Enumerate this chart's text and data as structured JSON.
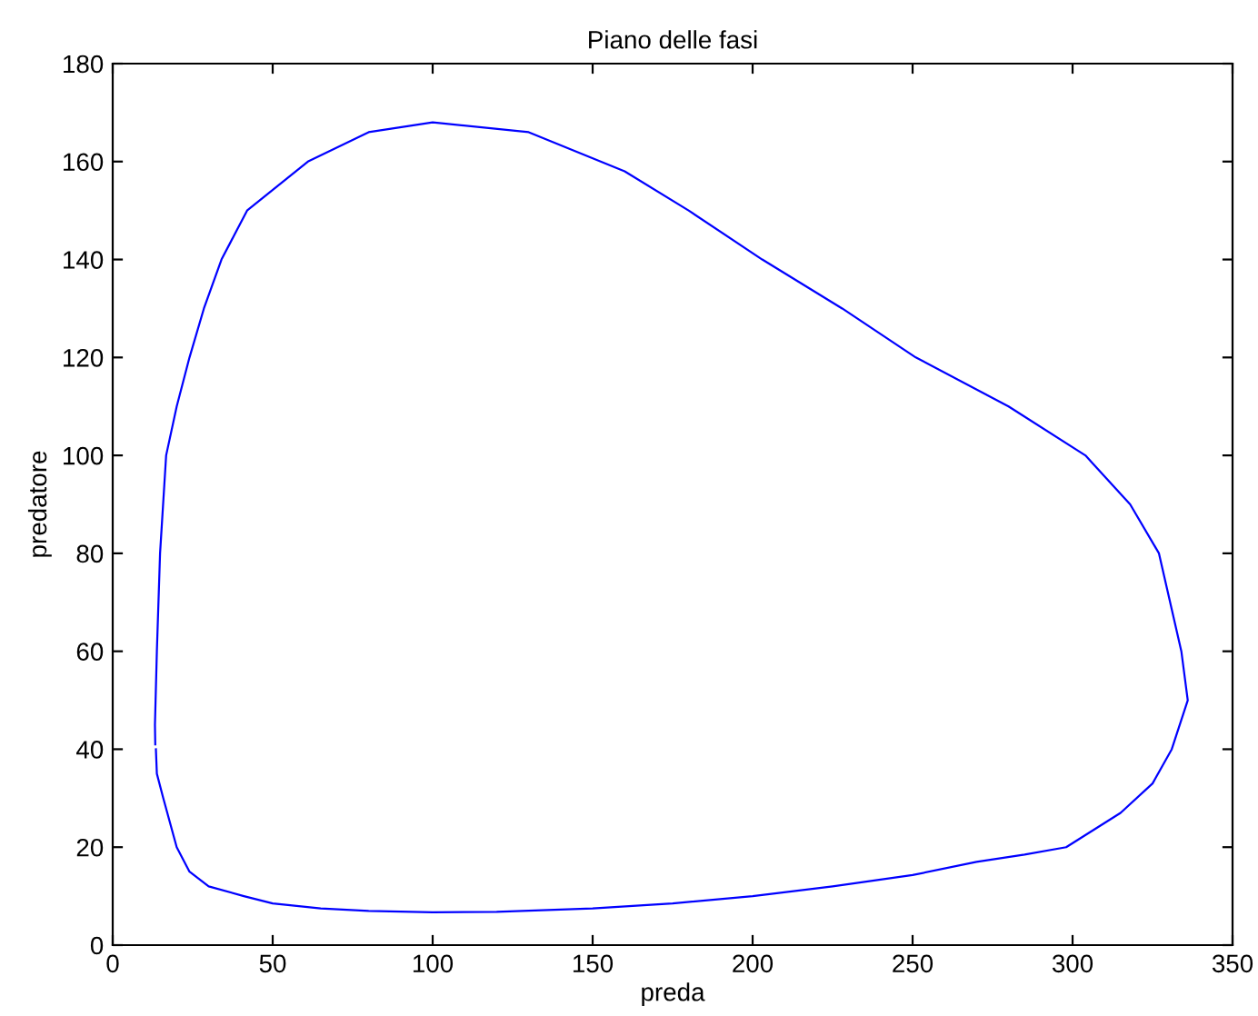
{
  "chart_data": {
    "type": "line",
    "title": "Piano delle fasi",
    "xlabel": "preda",
    "ylabel": "predatore",
    "x": [
      13.5,
      13.8,
      15.8,
      20,
      24,
      30,
      41,
      50,
      65,
      80,
      100,
      120,
      150,
      175,
      200,
      225,
      250,
      270,
      285,
      298,
      315,
      325,
      331,
      336,
      334,
      327,
      318,
      304,
      280,
      251,
      228,
      203,
      180,
      160,
      130,
      100,
      80,
      61,
      42,
      34,
      28.5,
      24,
      20,
      16.7,
      14.8,
      13.8,
      13.4,
      13.2,
      13.3
    ],
    "series": [
      {
        "color": "#0000ff",
        "values": [
          40,
          35,
          30,
          20,
          15,
          12,
          10,
          8.5,
          7.5,
          7,
          6.7,
          6.8,
          7.5,
          8.5,
          10,
          12,
          14.3,
          17,
          18.5,
          20,
          27,
          33,
          40,
          50,
          60,
          80,
          90,
          100,
          110,
          120,
          130,
          140,
          150,
          158,
          166,
          168,
          166,
          160,
          150,
          140,
          130,
          120,
          110,
          100,
          80,
          60,
          50,
          45,
          41
        ]
      }
    ],
    "xlim": [
      0,
      350
    ],
    "ylim": [
      0,
      180
    ],
    "xticks": [
      0,
      50,
      100,
      150,
      200,
      250,
      300,
      350
    ],
    "yticks": [
      0,
      20,
      40,
      60,
      80,
      100,
      120,
      140,
      160,
      180
    ],
    "grid": false,
    "legend": false,
    "line_style": "solid",
    "marker": "none"
  }
}
